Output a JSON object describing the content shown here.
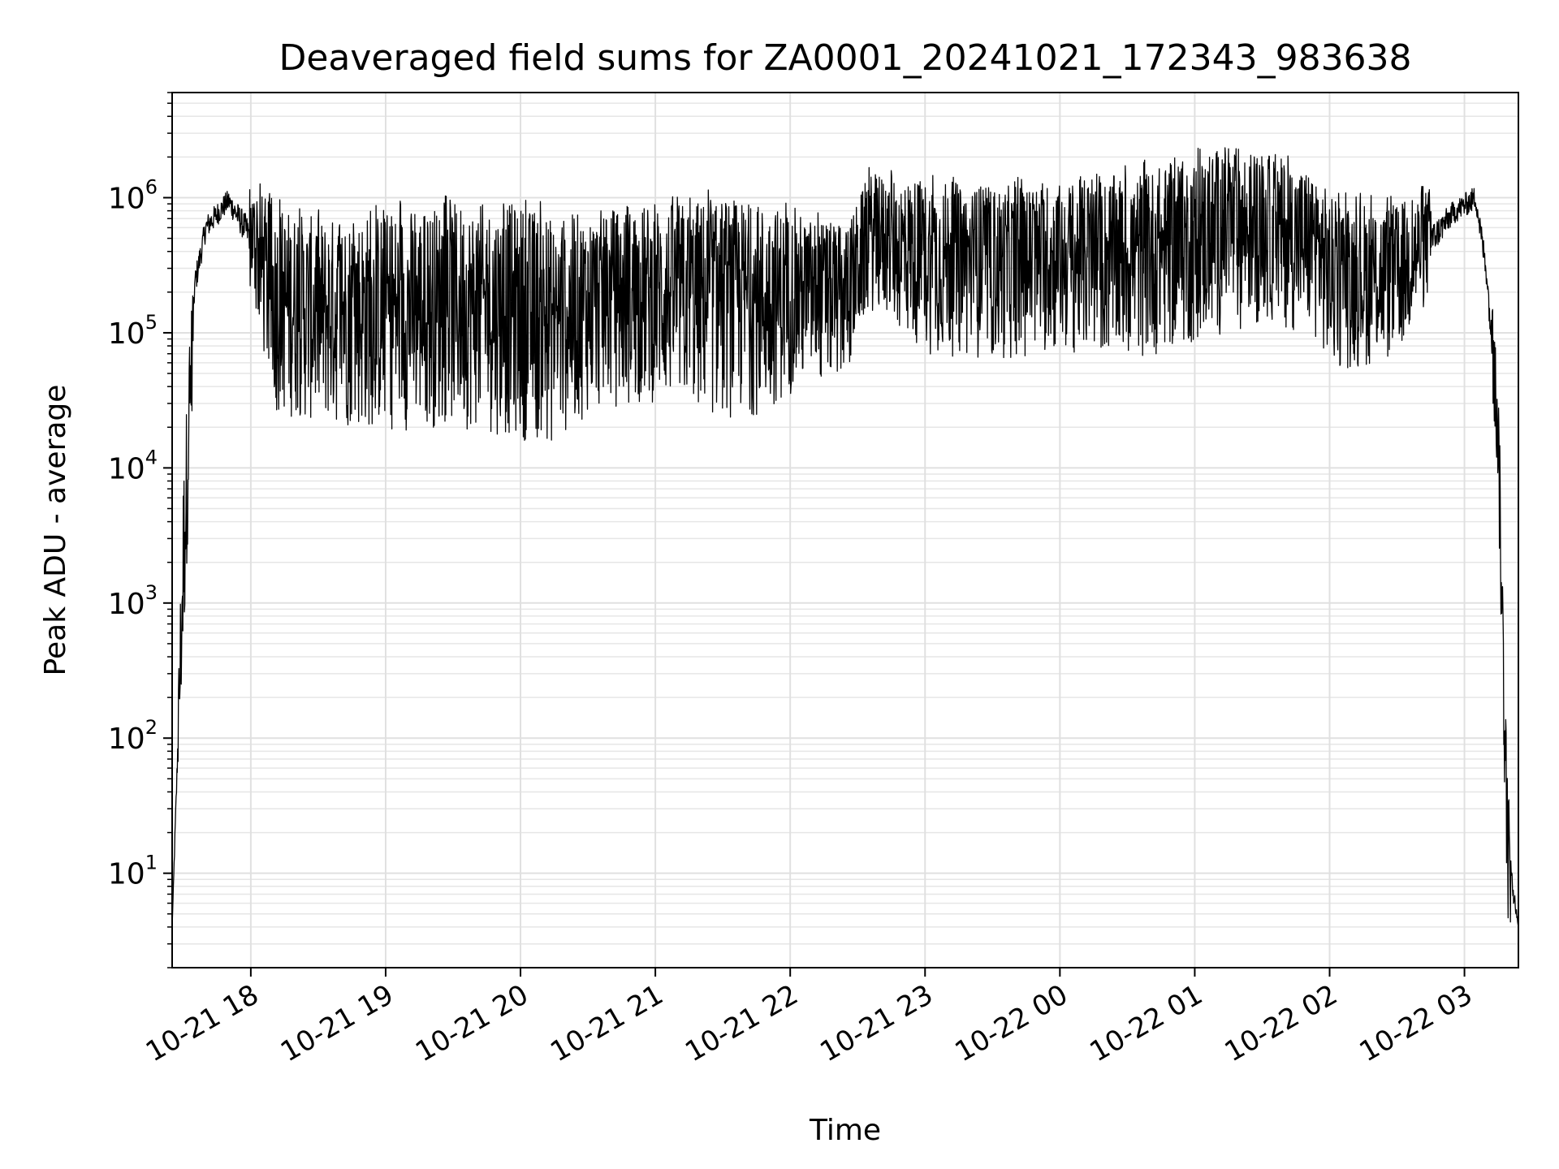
{
  "chart_data": {
    "type": "line",
    "title": "Deaveraged field sums for ZA0001_20241021_172343_983638",
    "xlabel": "Time",
    "ylabel": "Peak ADU - average",
    "yscale": "log",
    "ylim": [
      2,
      6000000
    ],
    "xlim": [
      "2024-10-21 17:25",
      "2024-10-22 03:24"
    ],
    "grid": true,
    "x_ticks": [
      "10-21 18",
      "10-21 19",
      "10-21 20",
      "10-21 21",
      "10-21 22",
      "10-21 23",
      "10-22 00",
      "10-22 01",
      "10-22 02",
      "10-22 03"
    ],
    "y_ticks": [
      {
        "base": "10",
        "exp": "1",
        "value": 10
      },
      {
        "base": "10",
        "exp": "2",
        "value": 100
      },
      {
        "base": "10",
        "exp": "3",
        "value": 1000
      },
      {
        "base": "10",
        "exp": "4",
        "value": 10000
      },
      {
        "base": "10",
        "exp": "5",
        "value": 100000
      },
      {
        "base": "10",
        "exp": "6",
        "value": 1000000
      }
    ],
    "series": [
      {
        "color": "#000000",
        "envelope": [
          {
            "t": "2024-10-21 17:25",
            "low": 4,
            "high": 4
          },
          {
            "t": "2024-10-21 17:30",
            "low": 300,
            "high": 10000
          },
          {
            "t": "2024-10-21 17:35",
            "low": 100000,
            "high": 500000
          },
          {
            "t": "2024-10-21 17:40",
            "low": 300000,
            "high": 1200000
          },
          {
            "t": "2024-10-21 17:50",
            "low": 500000,
            "high": 1800000
          },
          {
            "t": "2024-10-21 18:00",
            "low": 200000,
            "high": 1300000
          },
          {
            "t": "2024-10-21 18:10",
            "low": 25000,
            "high": 900000
          },
          {
            "t": "2024-10-21 18:30",
            "low": 20000,
            "high": 700000
          },
          {
            "t": "2024-10-21 19:00",
            "low": 18000,
            "high": 800000
          },
          {
            "t": "2024-10-21 19:30",
            "low": 20000,
            "high": 900000
          },
          {
            "t": "2024-10-21 20:00",
            "low": 16000,
            "high": 900000
          },
          {
            "t": "2024-10-21 20:15",
            "low": 14000,
            "high": 700000
          },
          {
            "t": "2024-10-21 20:30",
            "low": 25000,
            "high": 800000
          },
          {
            "t": "2024-10-21 21:00",
            "low": 30000,
            "high": 900000
          },
          {
            "t": "2024-10-21 21:30",
            "low": 22000,
            "high": 1000000
          },
          {
            "t": "2024-10-21 21:50",
            "low": 25000,
            "high": 900000
          },
          {
            "t": "2024-10-21 22:00",
            "low": 35000,
            "high": 800000
          },
          {
            "t": "2024-10-21 22:25",
            "low": 45000,
            "high": 600000
          },
          {
            "t": "2024-10-21 22:35",
            "low": 150000,
            "high": 1500000
          },
          {
            "t": "2024-10-21 23:00",
            "low": 70000,
            "high": 1400000
          },
          {
            "t": "2024-10-21 23:30",
            "low": 60000,
            "high": 1200000
          },
          {
            "t": "2024-10-22 00:00",
            "low": 70000,
            "high": 1300000
          },
          {
            "t": "2024-10-22 00:30",
            "low": 60000,
            "high": 1500000
          },
          {
            "t": "2024-10-22 01:00",
            "low": 80000,
            "high": 2000000
          },
          {
            "t": "2024-10-22 01:15",
            "low": 100000,
            "high": 2500000
          },
          {
            "t": "2024-10-22 01:30",
            "low": 120000,
            "high": 2200000
          },
          {
            "t": "2024-10-22 01:55",
            "low": 90000,
            "high": 1600000
          },
          {
            "t": "2024-10-22 02:00",
            "low": 50000,
            "high": 1000000
          },
          {
            "t": "2024-10-22 02:30",
            "low": 60000,
            "high": 900000
          },
          {
            "t": "2024-10-22 02:55",
            "low": 400000,
            "high": 1500000
          },
          {
            "t": "2024-10-22 03:05",
            "low": 500000,
            "high": 2000000
          },
          {
            "t": "2024-10-22 03:10",
            "low": 120000,
            "high": 600000
          },
          {
            "t": "2024-10-22 03:15",
            "low": 6000,
            "high": 50000
          },
          {
            "t": "2024-10-22 03:19",
            "low": 4,
            "high": 60
          },
          {
            "t": "2024-10-22 03:24",
            "low": 4,
            "high": 4
          }
        ]
      }
    ]
  }
}
